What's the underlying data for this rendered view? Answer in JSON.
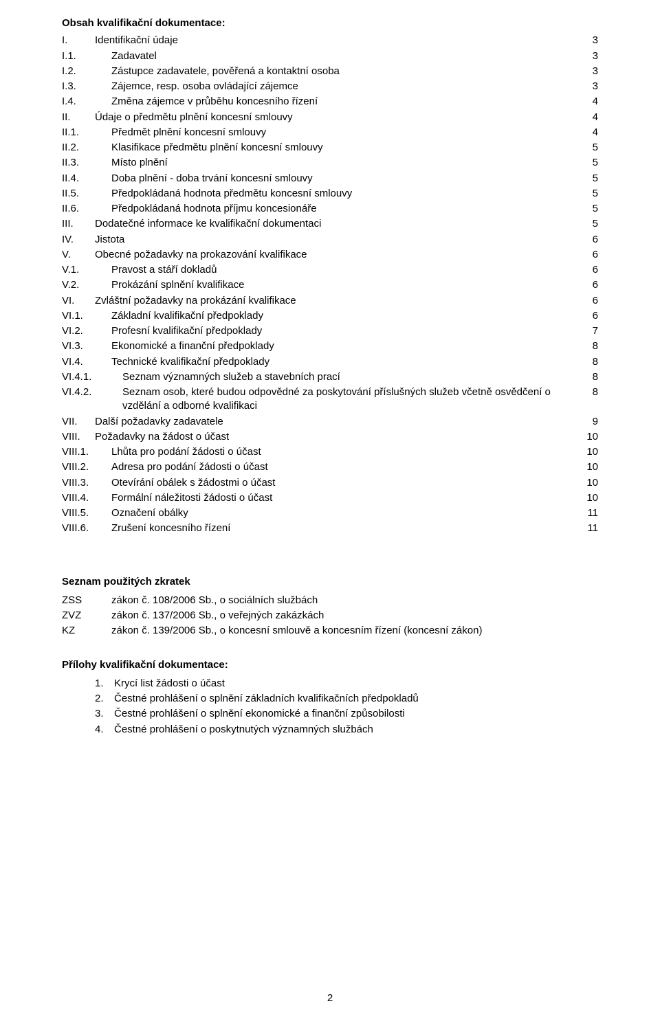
{
  "toc_heading": "Obsah kvalifikační dokumentace:",
  "toc": [
    {
      "level": 0,
      "label": "I.",
      "title": "Identifikační údaje",
      "page": "3"
    },
    {
      "level": 1,
      "label": "I.1.",
      "title": "Zadavatel",
      "page": "3"
    },
    {
      "level": 1,
      "label": "I.2.",
      "title": "Zástupce zadavatele, pověřená a kontaktní osoba",
      "page": "3"
    },
    {
      "level": 1,
      "label": "I.3.",
      "title": "Zájemce, resp. osoba ovládající zájemce",
      "page": "3"
    },
    {
      "level": 1,
      "label": "I.4.",
      "title": "Změna zájemce v průběhu koncesního řízení",
      "page": "4"
    },
    {
      "level": 0,
      "label": "II.",
      "title": "Údaje o předmětu plnění koncesní smlouvy",
      "page": "4"
    },
    {
      "level": 1,
      "label": "II.1.",
      "title": "Předmět plnění koncesní smlouvy",
      "page": "4"
    },
    {
      "level": 1,
      "label": "II.2.",
      "title": "Klasifikace předmětu plnění koncesní smlouvy",
      "page": "5"
    },
    {
      "level": 1,
      "label": "II.3.",
      "title": "Místo plnění",
      "page": "5"
    },
    {
      "level": 1,
      "label": "II.4.",
      "title": "Doba plnění - doba trvání koncesní smlouvy",
      "page": "5"
    },
    {
      "level": 1,
      "label": "II.5.",
      "title": "Předpokládaná hodnota předmětu koncesní smlouvy",
      "page": "5"
    },
    {
      "level": 1,
      "label": "II.6.",
      "title": "Předpokládaná hodnota příjmu koncesionáře",
      "page": "5"
    },
    {
      "level": 0,
      "label": "III.",
      "title": "Dodatečné informace ke kvalifikační dokumentaci",
      "page": "5"
    },
    {
      "level": 0,
      "label": "IV.",
      "title": "Jistota",
      "page": "6"
    },
    {
      "level": 0,
      "label": "V.",
      "title": "Obecné požadavky na prokazování kvalifikace",
      "page": "6"
    },
    {
      "level": 1,
      "label": "V.1.",
      "title": "Pravost a stáří dokladů",
      "page": "6"
    },
    {
      "level": 1,
      "label": "V.2.",
      "title": "Prokázání splnění kvalifikace",
      "page": "6"
    },
    {
      "level": 0,
      "label": "VI.",
      "title": "Zvláštní požadavky na prokázání kvalifikace",
      "page": "6"
    },
    {
      "level": 1,
      "label": "VI.1.",
      "title": "Základní kvalifikační předpoklady",
      "page": "6"
    },
    {
      "level": 1,
      "label": "VI.2.",
      "title": "Profesní kvalifikační předpoklady",
      "page": "7"
    },
    {
      "level": 1,
      "label": "VI.3.",
      "title": "Ekonomické a finanční předpoklady",
      "page": "8"
    },
    {
      "level": 1,
      "label": "VI.4.",
      "title": "Technické kvalifikační předpoklady",
      "page": "8"
    },
    {
      "level": 2,
      "label": "VI.4.1.",
      "title": "Seznam významných služeb a stavebních prací",
      "page": "8"
    },
    {
      "level": 2,
      "label": "VI.4.2.",
      "title": "Seznam osob, které budou odpovědné za poskytování příslušných služeb včetně osvědčení o vzdělání a odborné kvalifikaci",
      "page": "8"
    },
    {
      "level": 0,
      "label": "VII.",
      "title": "Další požadavky zadavatele",
      "page": "9"
    },
    {
      "level": 0,
      "label": "VIII.",
      "title": "Požadavky na žádost o účast",
      "page": "10"
    },
    {
      "level": 1,
      "label": "VIII.1.",
      "title": "Lhůta pro podání žádosti o účast",
      "page": "10"
    },
    {
      "level": 1,
      "label": "VIII.2.",
      "title": "Adresa pro podání žádosti o účast",
      "page": "10"
    },
    {
      "level": 1,
      "label": "VIII.3.",
      "title": "Otevírání obálek s žádostmi o účast",
      "page": "10"
    },
    {
      "level": 1,
      "label": "VIII.4.",
      "title": "Formální náležitosti žádosti o účast",
      "page": "10"
    },
    {
      "level": 1,
      "label": "VIII.5.",
      "title": "Označení obálky",
      "page": "11"
    },
    {
      "level": 1,
      "label": "VIII.6.",
      "title": "Zrušení koncesního řízení",
      "page": "11"
    }
  ],
  "abbr_heading": "Seznam použitých zkratek",
  "abbreviations": [
    {
      "term": "ZSS",
      "def": "zákon č. 108/2006 Sb., o sociálních službách"
    },
    {
      "term": "ZVZ",
      "def": "zákon č. 137/2006 Sb., o veřejných zakázkách"
    },
    {
      "term": "KZ",
      "def": "zákon č. 139/2006 Sb., o koncesní smlouvě a koncesním řízení (koncesní zákon)"
    }
  ],
  "attach_heading": "Přílohy kvalifikační dokumentace:",
  "attachments": [
    {
      "num": "1.",
      "title": "Krycí list žádosti o účast"
    },
    {
      "num": "2.",
      "title": "Čestné prohlášení o splnění základních kvalifikačních předpokladů"
    },
    {
      "num": "3.",
      "title": "Čestné prohlášení o splnění ekonomické a finanční způsobilosti"
    },
    {
      "num": "4.",
      "title": "Čestné prohlášení o poskytnutých významných službách"
    }
  ],
  "page_number": "2"
}
